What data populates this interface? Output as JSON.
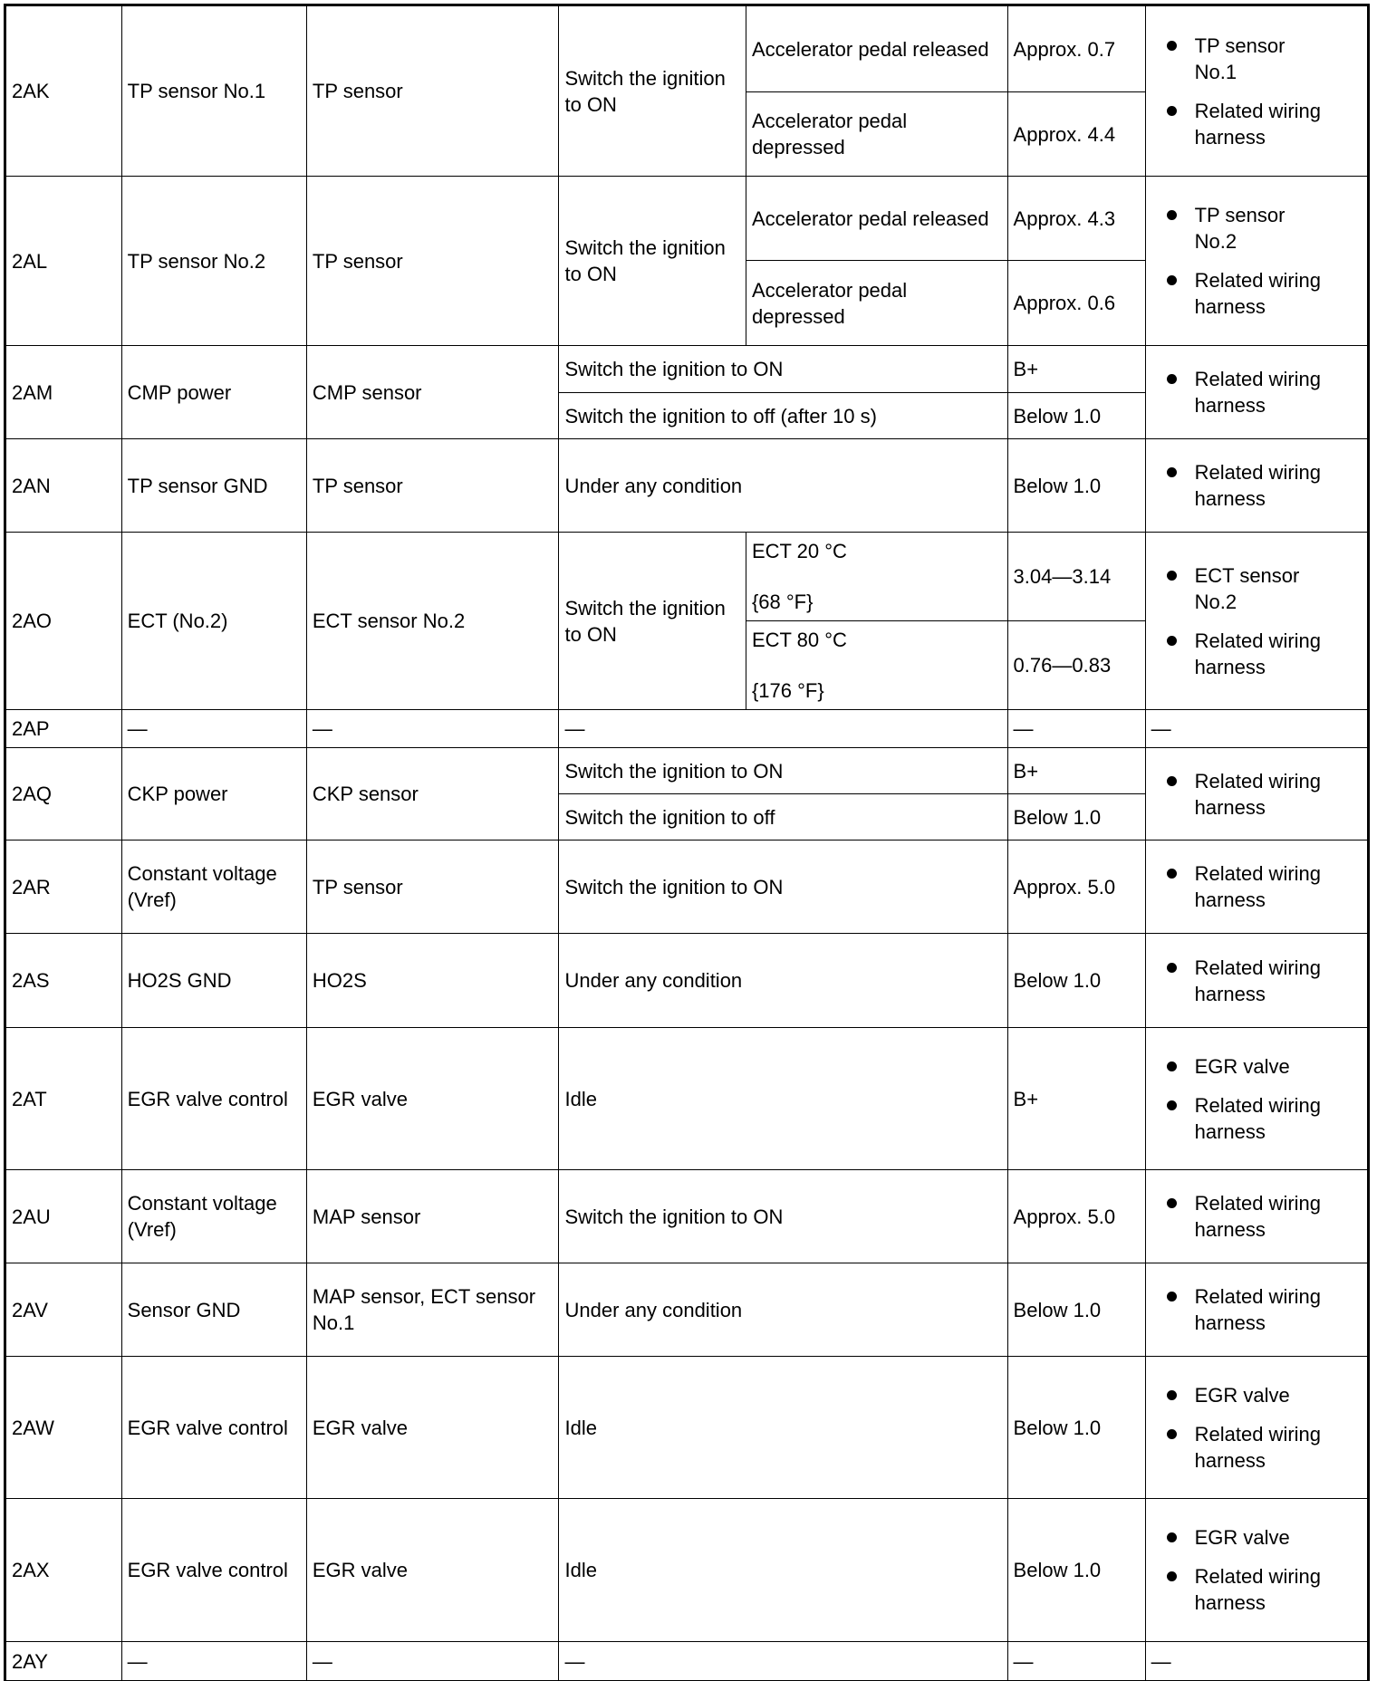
{
  "rows": [
    {
      "terminal": "2AK",
      "signal": "TP sensor No.1",
      "connected": "TP sensor",
      "condition": "Switch the ignition to ON",
      "subs": [
        {
          "cond": "Accelerator pedal released",
          "value": "Approx. 0.7"
        },
        {
          "cond": "Accelerator pedal depressed",
          "value": "Approx. 4.4"
        }
      ],
      "checks": [
        "TP sensor No.1",
        "Related wiring harness"
      ]
    },
    {
      "terminal": "2AL",
      "signal": "TP sensor No.2",
      "connected": "TP sensor",
      "condition": "Switch the ignition to ON",
      "subs": [
        {
          "cond": "Accelerator pedal released",
          "value": "Approx. 4.3"
        },
        {
          "cond": "Accelerator pedal depressed",
          "value": "Approx. 0.6"
        }
      ],
      "checks": [
        "TP sensor No.2",
        "Related wiring harness"
      ]
    },
    {
      "terminal": "2AM",
      "signal": "CMP power",
      "connected": "CMP sensor",
      "subs": [
        {
          "cond": "Switch the ignition to ON",
          "value": "B+"
        },
        {
          "cond": "Switch the ignition to off (after 10 s)",
          "value": "Below 1.0"
        }
      ],
      "checks": [
        "Related wiring harness"
      ]
    },
    {
      "terminal": "2AN",
      "signal": "TP sensor GND",
      "connected": "TP sensor",
      "subs": [
        {
          "cond": "Under any condition",
          "value": "Below 1.0"
        }
      ],
      "checks": [
        "Related wiring harness"
      ]
    },
    {
      "terminal": "2AO",
      "signal": "ECT (No.2)",
      "connected": "ECT sensor No.2",
      "condition": "Switch the ignition to ON",
      "subs": [
        {
          "cond": "ECT 20 °C",
          "cond2": "{68 °F}",
          "value": "3.04—3.14"
        },
        {
          "cond": "ECT 80 °C",
          "cond2": "{176 °F}",
          "value": "0.76—0.83"
        }
      ],
      "checks": [
        "ECT sensor No.2",
        "Related wiring harness"
      ]
    },
    {
      "terminal": "2AP",
      "signal": "—",
      "connected": "—",
      "subs": [
        {
          "cond": "—",
          "value": "—"
        }
      ],
      "checks_text": "—"
    },
    {
      "terminal": "2AQ",
      "signal": "CKP power",
      "connected": "CKP sensor",
      "subs": [
        {
          "cond": "Switch the ignition to ON",
          "value": "B+"
        },
        {
          "cond": "Switch the ignition to off",
          "value": "Below 1.0"
        }
      ],
      "checks": [
        "Related wiring harness"
      ]
    },
    {
      "terminal": "2AR",
      "signal": "Constant voltage (Vref)",
      "connected": "TP sensor",
      "subs": [
        {
          "cond": "Switch the ignition to ON",
          "value": "Approx. 5.0"
        }
      ],
      "checks": [
        "Related wiring harness"
      ]
    },
    {
      "terminal": "2AS",
      "signal": "HO2S GND",
      "connected": "HO2S",
      "subs": [
        {
          "cond": "Under any condition",
          "value": "Below 1.0"
        }
      ],
      "checks": [
        "Related wiring harness"
      ]
    },
    {
      "terminal": "2AT",
      "signal": "EGR valve control",
      "connected": "EGR valve",
      "subs": [
        {
          "cond": "Idle",
          "value": "B+"
        }
      ],
      "checks": [
        "EGR valve",
        "Related wiring harness"
      ]
    },
    {
      "terminal": "2AU",
      "signal": "Constant voltage (Vref)",
      "connected": "MAP sensor",
      "subs": [
        {
          "cond": "Switch the ignition to ON",
          "value": "Approx. 5.0"
        }
      ],
      "checks": [
        "Related wiring harness"
      ]
    },
    {
      "terminal": "2AV",
      "signal": "Sensor GND",
      "connected": "MAP sensor, ECT sensor No.1",
      "subs": [
        {
          "cond": "Under any condition",
          "value": "Below 1.0"
        }
      ],
      "checks": [
        "Related wiring harness"
      ]
    },
    {
      "terminal": "2AW",
      "signal": "EGR valve control",
      "connected": "EGR valve",
      "subs": [
        {
          "cond": "Idle",
          "value": "Below 1.0"
        }
      ],
      "checks": [
        "EGR valve",
        "Related wiring harness"
      ]
    },
    {
      "terminal": "2AX",
      "signal": "EGR valve control",
      "connected": "EGR valve",
      "subs": [
        {
          "cond": "Idle",
          "value": "Below 1.0"
        }
      ],
      "checks": [
        "EGR valve",
        "Related wiring harness"
      ]
    },
    {
      "terminal": "2AY",
      "signal": "—",
      "connected": "—",
      "subs": [
        {
          "cond": "—",
          "value": "—"
        }
      ],
      "checks_text": "—"
    }
  ]
}
